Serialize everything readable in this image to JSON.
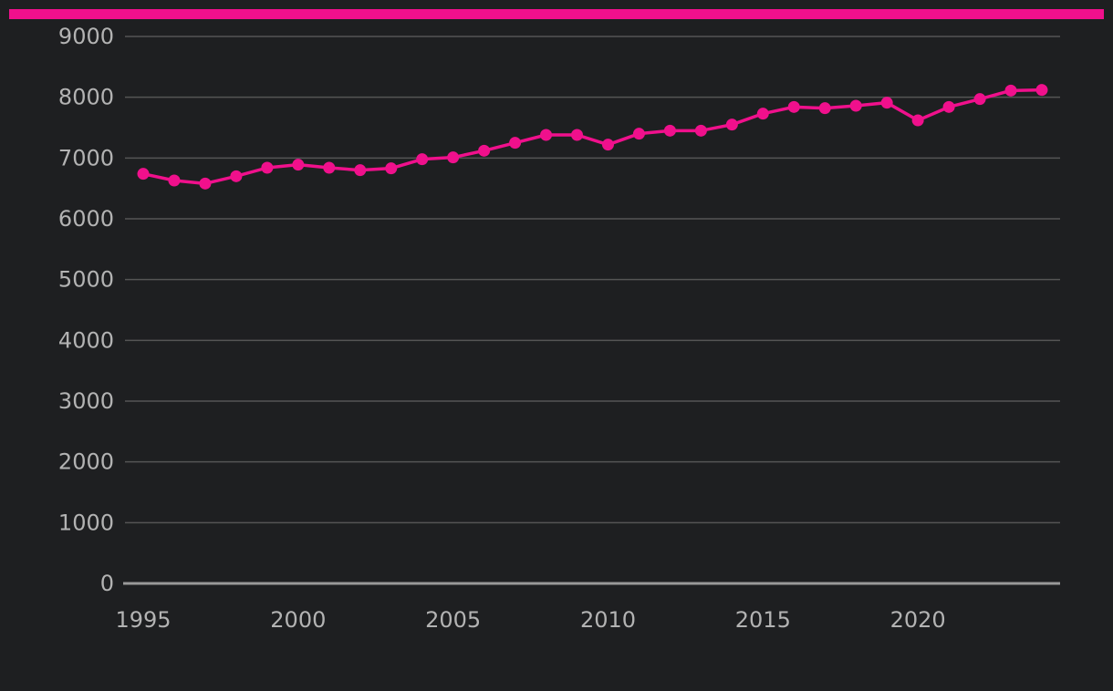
{
  "colors": {
    "background": "#1e1f21",
    "accent": "#f0108c",
    "gridline": "#555555",
    "baseline": "#999999",
    "tick_text": "#b3b3b3"
  },
  "chart_data": {
    "type": "line",
    "title": "",
    "xlabel": "",
    "ylabel": "",
    "grid": true,
    "legend": "none",
    "xlim": [
      1995,
      2024
    ],
    "ylim": [
      0,
      9000
    ],
    "x_ticks": [
      1995,
      2000,
      2005,
      2010,
      2015,
      2020
    ],
    "y_ticks": [
      0,
      1000,
      2000,
      3000,
      4000,
      5000,
      6000,
      7000,
      8000,
      9000
    ],
    "series": [
      {
        "x": [
          1995,
          1996,
          1997,
          1998,
          1999,
          2000,
          2001,
          2002,
          2003,
          2004,
          2005,
          2006,
          2007,
          2008,
          2009,
          2010,
          2011,
          2012,
          2013,
          2014,
          2015,
          2016,
          2017,
          2018,
          2019,
          2020,
          2021,
          2022,
          2023,
          2024
        ],
        "values": [
          6740,
          6630,
          6580,
          6700,
          6840,
          6890,
          6840,
          6800,
          6830,
          6980,
          7010,
          7120,
          7250,
          7380,
          7380,
          7220,
          7400,
          7450,
          7450,
          7550,
          7730,
          7840,
          7820,
          7860,
          7910,
          7620,
          7840,
          7970,
          8110,
          8120
        ]
      }
    ]
  }
}
